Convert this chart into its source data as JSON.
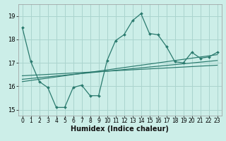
{
  "title": "",
  "xlabel": "Humidex (Indice chaleur)",
  "bg_color": "#cceee8",
  "line_color": "#2a7a6e",
  "grid_color": "#aad4ce",
  "xlim": [
    -0.5,
    23.5
  ],
  "ylim": [
    14.75,
    19.5
  ],
  "xticks": [
    0,
    1,
    2,
    3,
    4,
    5,
    6,
    7,
    8,
    9,
    10,
    11,
    12,
    13,
    14,
    15,
    16,
    17,
    18,
    19,
    20,
    21,
    22,
    23
  ],
  "yticks": [
    15,
    16,
    17,
    18,
    19
  ],
  "main_x": [
    0,
    1,
    2,
    3,
    4,
    5,
    6,
    7,
    8,
    9,
    10,
    11,
    12,
    13,
    14,
    15,
    16,
    17,
    18,
    19,
    20,
    21,
    22,
    23
  ],
  "main_y": [
    18.5,
    17.05,
    16.2,
    15.95,
    15.1,
    15.1,
    15.95,
    16.05,
    15.6,
    15.6,
    17.1,
    17.95,
    18.2,
    18.8,
    19.1,
    18.25,
    18.2,
    17.7,
    17.05,
    17.0,
    17.45,
    17.2,
    17.25,
    17.45
  ],
  "line1_x": [
    0,
    23
  ],
  "line1_y": [
    16.45,
    16.9
  ],
  "line2_x": [
    0,
    23
  ],
  "line2_y": [
    16.3,
    17.1
  ],
  "line3_x": [
    0,
    23
  ],
  "line3_y": [
    16.2,
    17.35
  ],
  "tick_fontsize": 5.5,
  "xlabel_fontsize": 7
}
